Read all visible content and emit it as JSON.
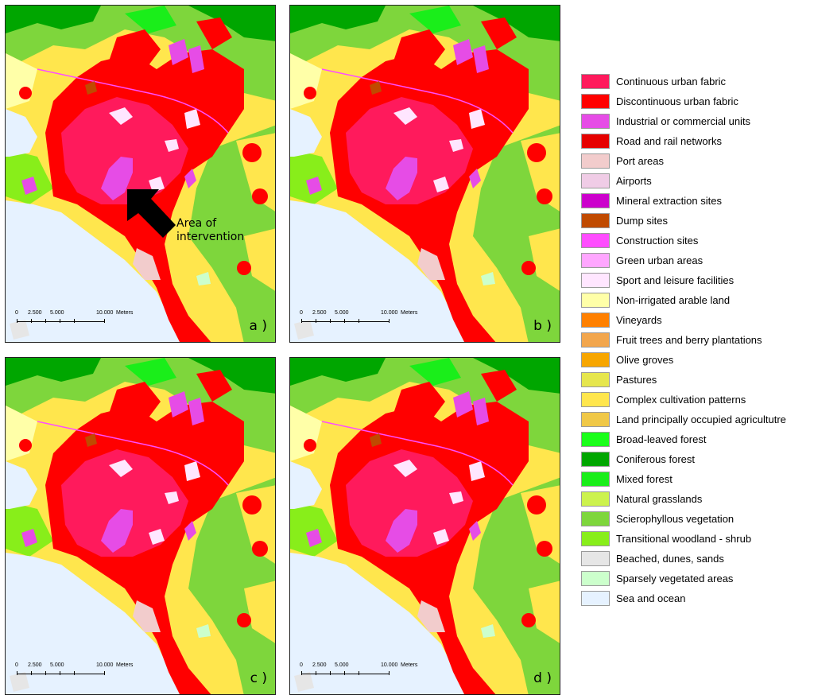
{
  "panels": [
    {
      "id": "a",
      "letter": "a )",
      "annotation": "Area of intervention"
    },
    {
      "id": "b",
      "letter": "b )"
    },
    {
      "id": "c",
      "letter": "c )"
    },
    {
      "id": "d",
      "letter": "d )"
    }
  ],
  "scale_bar": {
    "labels": [
      "0",
      "2.500",
      "5.000",
      "10.000",
      "Meters"
    ]
  },
  "legend": [
    {
      "label": "Continuous urban fabric",
      "color": "#ff1a5c"
    },
    {
      "label": "Discontinuous urban fabric",
      "color": "#ff0000"
    },
    {
      "label": "Industrial or commercial units",
      "color": "#e64ce6"
    },
    {
      "label": "Road and rail networks",
      "color": "#e60000"
    },
    {
      "label": "Port areas",
      "color": "#f2cccc"
    },
    {
      "label": "Airports",
      "color": "#f0cce6"
    },
    {
      "label": "Mineral extraction sites",
      "color": "#cc00cc"
    },
    {
      "label": "Dump sites",
      "color": "#c04a00"
    },
    {
      "label": "Construction sites",
      "color": "#ff4dff"
    },
    {
      "label": "Green urban areas",
      "color": "#ffa6ff"
    },
    {
      "label": "Sport and leisure facilities",
      "color": "#ffe6ff"
    },
    {
      "label": "Non-irrigated arable land",
      "color": "#ffffa8"
    },
    {
      "label": "Vineyards",
      "color": "#ff8000"
    },
    {
      "label": "Fruit trees and berry plantations",
      "color": "#f2a64d"
    },
    {
      "label": "Olive groves",
      "color": "#f7a600"
    },
    {
      "label": "Pastures",
      "color": "#e6e64d"
    },
    {
      "label": "Complex cultivation patterns",
      "color": "#ffe64d"
    },
    {
      "label": "Land principally occupied agricultutre",
      "color": "#f0c847"
    },
    {
      "label": "Broad-leaved forest",
      "color": "#1aff1a"
    },
    {
      "label": "Coniferous forest",
      "color": "#00a600"
    },
    {
      "label": "Mixed forest",
      "color": "#1aee1a"
    },
    {
      "label": "Natural grasslands",
      "color": "#ccf24d"
    },
    {
      "label": "Scierophyllous vegetation",
      "color": "#7ed63c"
    },
    {
      "label": "Transitional woodland - shrub",
      "color": "#88ee1a"
    },
    {
      "label": "Beached, dunes, sands",
      "color": "#e6e6e6"
    },
    {
      "label": "Sparsely vegetated areas",
      "color": "#ccffcc"
    },
    {
      "label": "Sea and ocean",
      "color": "#e6f2ff"
    }
  ]
}
